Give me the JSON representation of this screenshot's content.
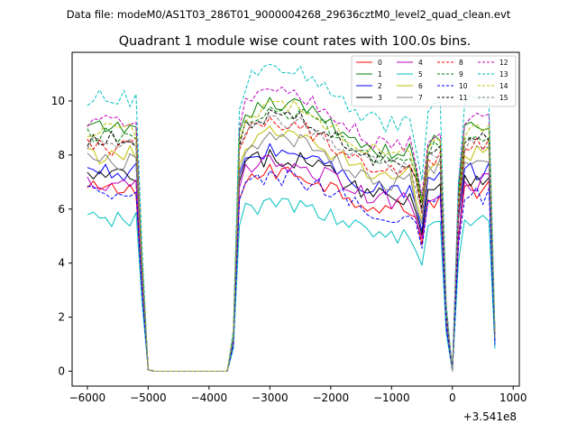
{
  "chart_data": {
    "type": "line",
    "suptitle": "Data file: modeM0/AS1T03_286T01_9000004268_29636cztM0_level2_quad_clean.evt",
    "title": "Quadrant 1 module wise count rates with 100.0s bins.",
    "xlabel": "",
    "ylabel": "",
    "x_offset_label": "+3.541e8",
    "xlim": [
      -6250,
      1100
    ],
    "ylim": [
      -0.55,
      11.8
    ],
    "xticks": [
      -6000,
      -5000,
      -4000,
      -3000,
      -2000,
      -1000,
      0,
      1000
    ],
    "xtick_labels": [
      "−6000",
      "−5000",
      "−4000",
      "−3000",
      "−2000",
      "−1000",
      "0",
      "1000"
    ],
    "yticks": [
      0,
      2,
      4,
      6,
      8,
      10
    ],
    "ytick_labels": [
      "0",
      "2",
      "4",
      "6",
      "8",
      "10"
    ],
    "legend": {
      "placement": "top-right",
      "columns": 4
    },
    "segments": [
      {
        "x_start": -6000,
        "x_end": -5100,
        "step": 100
      },
      {
        "x_start": -5000,
        "x_end": -3700,
        "step": 100
      },
      {
        "x_start": -3600,
        "x_end": -2800,
        "step": 100
      },
      {
        "x_start": -2800,
        "x_end": -200,
        "step": 100
      },
      {
        "x_start": -100,
        "x_end": 0,
        "step": 100
      },
      {
        "x_start": 100,
        "x_end": 700,
        "step": 100
      }
    ],
    "series": [
      {
        "name": "0",
        "color": "#ff0000",
        "dash": "solid",
        "level": 6.7,
        "amp": 0.35
      },
      {
        "name": "1",
        "color": "#008000",
        "dash": "solid",
        "level": 9.0,
        "amp": 0.3
      },
      {
        "name": "2",
        "color": "#0000ff",
        "dash": "solid",
        "level": 7.4,
        "amp": 0.35
      },
      {
        "name": "3",
        "color": "#000000",
        "dash": "solid",
        "level": 7.2,
        "amp": 0.35
      },
      {
        "name": "4",
        "color": "#bf00bf",
        "dash": "solid",
        "level": 7.0,
        "amp": 0.35
      },
      {
        "name": "5",
        "color": "#00bfbf",
        "dash": "solid",
        "level": 5.6,
        "amp": 0.3
      },
      {
        "name": "6",
        "color": "#bfbf00",
        "dash": "solid",
        "level": 8.0,
        "amp": 0.35
      },
      {
        "name": "7",
        "color": "#808080",
        "dash": "solid",
        "level": 7.8,
        "amp": 0.35
      },
      {
        "name": "8",
        "color": "#ff0000",
        "dash": "dashed",
        "level": 8.3,
        "amp": 0.35
      },
      {
        "name": "9",
        "color": "#008000",
        "dash": "dashed",
        "level": 8.7,
        "amp": 0.3
      },
      {
        "name": "10",
        "color": "#0000ff",
        "dash": "dashed",
        "level": 6.5,
        "amp": 0.35
      },
      {
        "name": "11",
        "color": "#000000",
        "dash": "dashed",
        "level": 8.6,
        "amp": 0.3
      },
      {
        "name": "12",
        "color": "#bf00bf",
        "dash": "dashed",
        "level": 9.3,
        "amp": 0.3
      },
      {
        "name": "13",
        "color": "#00bfbf",
        "dash": "dashed",
        "level": 10.1,
        "amp": 0.35
      },
      {
        "name": "14",
        "color": "#bfbf00",
        "dash": "dashed",
        "level": 8.9,
        "amp": 0.3
      },
      {
        "name": "15",
        "color": "#808080",
        "dash": "dashed",
        "level": 8.4,
        "amp": 0.3
      }
    ]
  }
}
